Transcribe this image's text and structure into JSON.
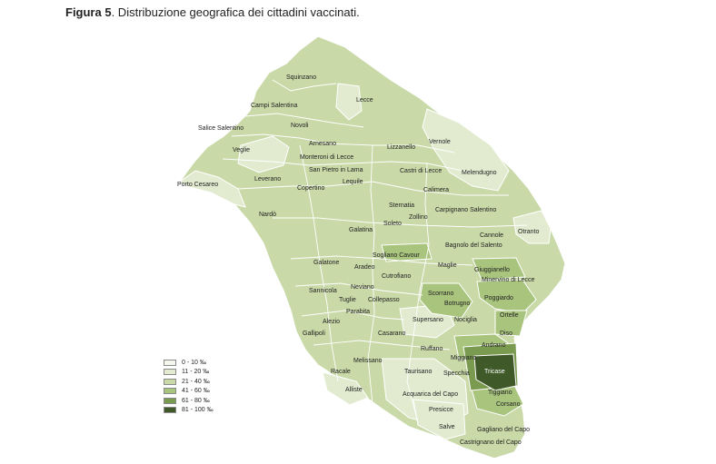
{
  "caption": {
    "figure": "Figura 5",
    "text": ". Distribuzione  geografica dei cittadini vaccinati."
  },
  "legend": [
    {
      "label": "0 - 10 ‰",
      "color": "#f4f7ee"
    },
    {
      "label": "11 - 20 ‰",
      "color": "#e2ebd0"
    },
    {
      "label": "21 - 40 ‰",
      "color": "#c9d9a8"
    },
    {
      "label": "41 - 60 ‰",
      "color": "#a8c47d"
    },
    {
      "label": "61 - 80 ‰",
      "color": "#7a9a50"
    },
    {
      "label": "81 - 100 ‰",
      "color": "#3f5a28"
    }
  ],
  "places": {
    "squinzano": "Squinzano",
    "lecce": "Lecce",
    "campi": "Campi Salentina",
    "novoli": "Novoli",
    "salice": "Salice Salentino",
    "veglie": "Veglie",
    "arnesano": "Arnesano",
    "monteroni": "Monteroni di Lecce",
    "lizzanello": "Lizzanello",
    "vernole": "Vernole",
    "sanpietro": "San Pietro in Lama",
    "castri": "Castri di Lecce",
    "melendugno": "Melendugno",
    "leverano": "Leverano",
    "lequile": "Lequile",
    "portocesareo": "Porto Cesareo",
    "copertino": "Copertino",
    "calimera": "Calimera",
    "sternatia": "Sternatia",
    "nardo": "Nardò",
    "carpignano": "Carpignano Salentino",
    "zollino": "Zollino",
    "soleto": "Soleto",
    "galatina": "Galatina",
    "cannole": "Cannole",
    "otranto": "Otranto",
    "bagnolo": "Bagnolo del Salento",
    "sogliano": "Sogliano Cavour",
    "galatone": "Galatone",
    "aradeo": "Aradeo",
    "maglie": "Maglie",
    "giuggianello": "Giuggianello",
    "cutrofiano": "Cutrofiano",
    "minervino": "Minervino di Lecce",
    "sannicola": "Sannicola",
    "neviano": "Neviano",
    "scorrano": "Scorrano",
    "poggiardo": "Poggiardo",
    "tuglie": "Tuglie",
    "collepasso": "Collepasso",
    "botrugno": "Botrugno",
    "parabita": "Parabita",
    "ortelle": "Ortelle",
    "alezio": "Alezio",
    "supersano": "Supersano",
    "nociglia": "Nociglia",
    "gallipoli": "Gallipoli",
    "casarano": "Casarano",
    "diso": "Diso",
    "andrano": "Andrano",
    "ruffano": "Ruffano",
    "melissano": "Melissano",
    "miggiano": "Miggiano",
    "racale": "Racale",
    "taurisano": "Taurisano",
    "specchia": "Specchia",
    "tricase": "Tricase",
    "alliste": "Alliste",
    "acquarica": "Acquarica del Capo",
    "tiggiano": "Tiggiano",
    "corsano": "Corsano",
    "presicce": "Presicce",
    "salve": "Salve",
    "gagliano": "Gagliano del Capo",
    "castrignano": "Castrignano del Capo"
  }
}
